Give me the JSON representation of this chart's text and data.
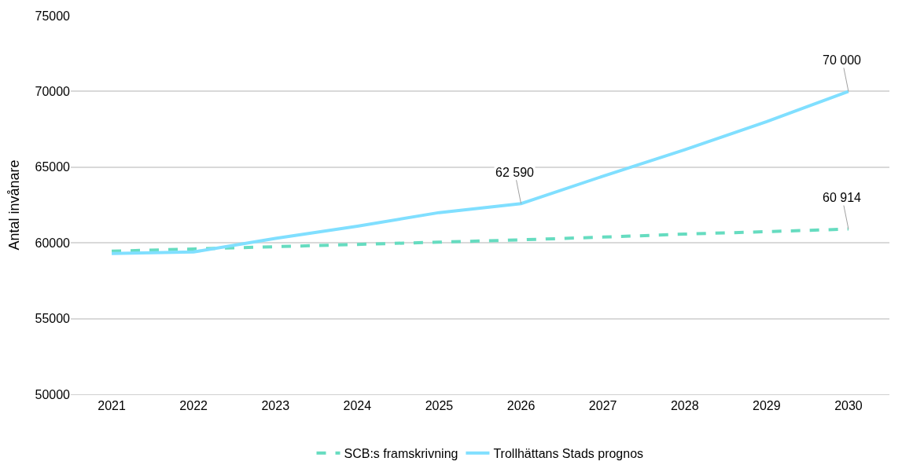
{
  "chart_data": {
    "type": "line",
    "ylabel": "Antal invånare",
    "categories": [
      "2021",
      "2022",
      "2023",
      "2024",
      "2025",
      "2026",
      "2027",
      "2028",
      "2029",
      "2030"
    ],
    "series": [
      {
        "name": "SCB:s framskrivning",
        "color": "#66dcc0",
        "line_style": "dashed",
        "values": [
          59450,
          59600,
          59750,
          59900,
          60050,
          60200,
          60380,
          60580,
          60740,
          60914
        ],
        "value_labels": [
          null,
          null,
          null,
          null,
          null,
          null,
          null,
          null,
          null,
          "60 914"
        ]
      },
      {
        "name": "Trollhättans Stads prognos",
        "color": "#80dfff",
        "line_style": "solid",
        "values": [
          59300,
          59400,
          60300,
          61100,
          62000,
          62590,
          64400,
          66150,
          68000,
          70000
        ],
        "value_labels": [
          null,
          null,
          null,
          null,
          null,
          "62 590",
          null,
          null,
          null,
          "70 000"
        ]
      }
    ],
    "ylim": [
      50000,
      75000
    ],
    "yticks": [
      50000,
      55000,
      60000,
      65000,
      70000,
      75000
    ],
    "grid": "y",
    "legend": "bottom",
    "marker": "none"
  }
}
